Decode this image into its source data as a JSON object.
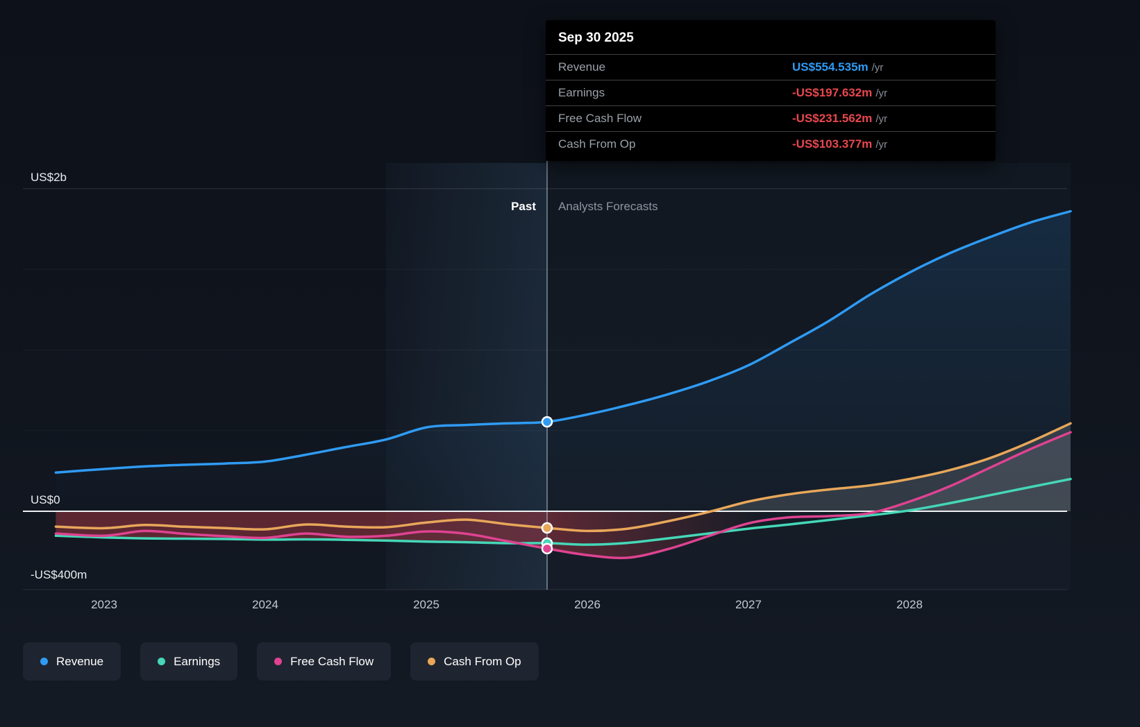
{
  "tooltip": {
    "date": "Sep 30 2025",
    "rows": [
      {
        "label": "Revenue",
        "value": "US$554.535m",
        "unit": "/yr",
        "color": "#2f9bf3"
      },
      {
        "label": "Earnings",
        "value": "-US$197.632m",
        "unit": "/yr",
        "color": "#e8484e"
      },
      {
        "label": "Free Cash Flow",
        "value": "-US$231.562m",
        "unit": "/yr",
        "color": "#e8484e"
      },
      {
        "label": "Cash From Op",
        "value": "-US$103.377m",
        "unit": "/yr",
        "color": "#e8484e"
      }
    ]
  },
  "annotations": {
    "past": "Past",
    "forecast": "Analysts Forecasts"
  },
  "y_axis_labels": [
    {
      "text": "US$2b",
      "value": 2000
    },
    {
      "text": "US$0",
      "value": 0
    },
    {
      "text": "-US$400m",
      "value": -400
    }
  ],
  "x_axis_labels": [
    "2023",
    "2024",
    "2025",
    "2026",
    "2027",
    "2028"
  ],
  "legend": [
    {
      "label": "Revenue",
      "color": "#2f9bf3"
    },
    {
      "label": "Earnings",
      "color": "#45d7b8"
    },
    {
      "label": "Free Cash Flow",
      "color": "#de4391"
    },
    {
      "label": "Cash From Op",
      "color": "#e8a75a"
    }
  ],
  "chart_data": {
    "type": "line",
    "title": "Past and analysts forecast growth of Revenue, Earnings, Free Cash Flow and Cash From Op",
    "units": "US$ millions per year",
    "ylim": [
      -400,
      2000
    ],
    "grid_values": [
      2000,
      1500,
      1000,
      500
    ],
    "x": [
      2022.7,
      2023,
      2023.25,
      2023.5,
      2023.75,
      2024,
      2024.25,
      2024.5,
      2024.75,
      2025,
      2025.25,
      2025.5,
      2025.75,
      2026,
      2026.25,
      2026.5,
      2026.75,
      2027,
      2027.25,
      2027.5,
      2027.75,
      2028,
      2028.25,
      2028.5,
      2028.75,
      2029
    ],
    "series": [
      {
        "name": "Revenue",
        "color": "#2f9bf3",
        "values": [
          240,
          262,
          278,
          288,
          296,
          308,
          350,
          398,
          445,
          520,
          535,
          545,
          554.5,
          600,
          658,
          725,
          805,
          905,
          1040,
          1180,
          1340,
          1480,
          1600,
          1700,
          1790,
          1860
        ]
      },
      {
        "name": "Earnings",
        "color": "#45d7b8",
        "values": [
          -152,
          -162,
          -168,
          -170,
          -172,
          -176,
          -174,
          -177,
          -182,
          -188,
          -192,
          -198,
          -197.6,
          -207,
          -196,
          -168,
          -138,
          -108,
          -82,
          -54,
          -26,
          5,
          50,
          100,
          150,
          200
        ]
      },
      {
        "name": "Free Cash Flow",
        "color": "#de4391",
        "values": [
          -138,
          -152,
          -122,
          -140,
          -155,
          -165,
          -138,
          -158,
          -152,
          -125,
          -140,
          -185,
          -231.6,
          -272,
          -288,
          -235,
          -155,
          -75,
          -38,
          -30,
          -12,
          60,
          155,
          270,
          385,
          490
        ]
      },
      {
        "name": "Cash From Op",
        "color": "#e8a75a",
        "values": [
          -95,
          -105,
          -85,
          -96,
          -104,
          -112,
          -82,
          -95,
          -99,
          -70,
          -52,
          -80,
          -103.4,
          -122,
          -108,
          -62,
          -5,
          60,
          105,
          135,
          160,
          200,
          255,
          330,
          430,
          545
        ]
      }
    ],
    "divider_x": 2025.75,
    "highlight_band_x": [
      2024.75,
      2025.75
    ],
    "marker": {
      "x": 2025.75,
      "date": "Sep 30 2025",
      "points": [
        {
          "series": "Cash From Op",
          "value": -103.377
        },
        {
          "series": "Earnings",
          "value": -197.632
        },
        {
          "series": "Free Cash Flow",
          "value": -231.562
        },
        {
          "series": "Revenue",
          "value": 554.535
        }
      ]
    }
  }
}
